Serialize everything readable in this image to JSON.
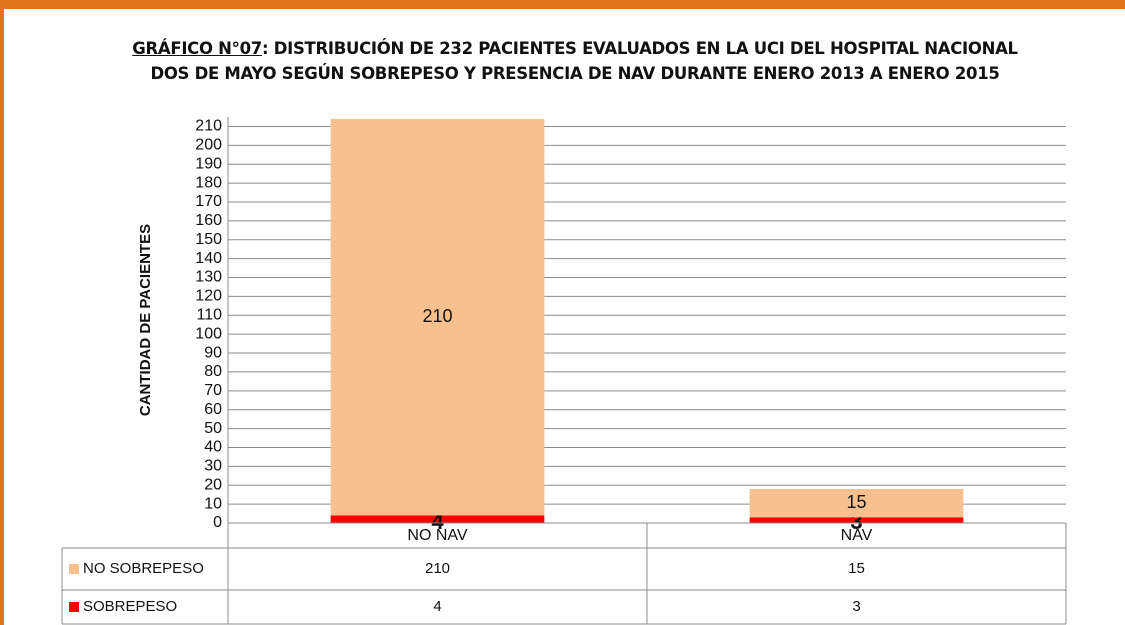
{
  "chart_data": {
    "type": "stacked_bar",
    "title": [
      "GRÁFICO N°07",
      ": DISTRIBUCIÓN DE 232 PACIENTES EVALUADOS EN LA UCI DEL HOSPITAL NACIONAL DOS DE MAYO SEGÚN SOBREPESO Y PRESENCIA DE NAV  DURANTE  ENERO 2013 A ENERO 2015"
    ],
    "y_label": "CANTIDAD DE PACIENTES",
    "categories": [
      "NO NAV",
      "NAV"
    ],
    "series": [
      {
        "name": "NO SOBREPESO",
        "color": "#f9c08f",
        "values": [
          210,
          15
        ]
      },
      {
        "name": "SOBREPESO",
        "color": "#ff0000",
        "values": [
          4,
          3
        ]
      }
    ],
    "ylim": [
      0,
      215
    ],
    "yticks": [
      0,
      10,
      20,
      30,
      40,
      50,
      60,
      70,
      80,
      90,
      100,
      110,
      120,
      130,
      140,
      150,
      160,
      170,
      180,
      190,
      200,
      210
    ],
    "grid": true
  }
}
